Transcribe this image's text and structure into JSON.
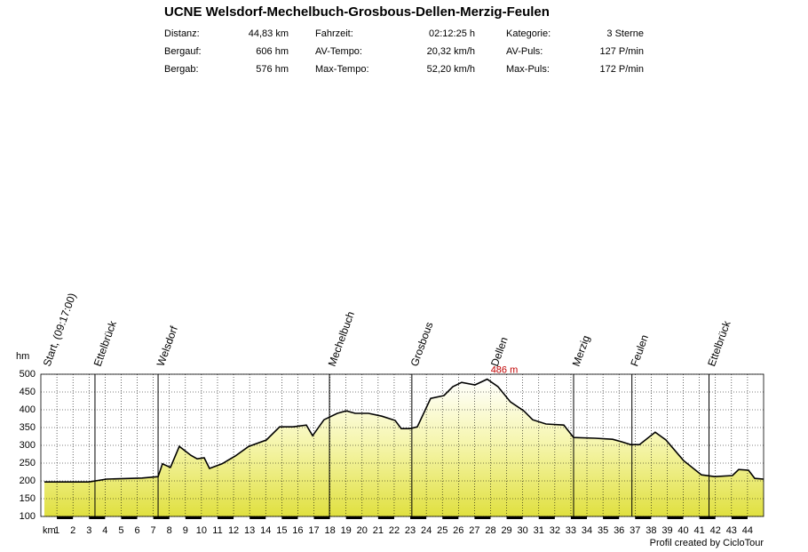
{
  "chart_data": {
    "type": "area",
    "title": "UCNE Welsdorf-Mechelbuch-Grosbous-Dellen-Merzig-Feulen",
    "stats": [
      {
        "label": "Distanz:",
        "value": "44,83 km"
      },
      {
        "label": "Bergauf:",
        "value": "606 hm"
      },
      {
        "label": "Bergab:",
        "value": "576 hm"
      },
      {
        "label": "Fahrzeit:",
        "value": "02:12:25 h"
      },
      {
        "label": "AV-Tempo:",
        "value": "20,32 km/h"
      },
      {
        "label": "Max-Tempo:",
        "value": "52,20 km/h"
      },
      {
        "label": "Kategorie:",
        "value": "3 Sterne"
      },
      {
        "label": "AV-Puls:",
        "value": "127 P/min"
      },
      {
        "label": "Max-Puls:",
        "value": "172 P/min"
      }
    ],
    "x_label": "km",
    "y_label": "hm",
    "x": [
      0.22,
      2.99,
      4.09,
      6.3,
      7.3,
      7.57,
      8.07,
      8.62,
      9.34,
      9.73,
      10.17,
      10.5,
      11.28,
      12.11,
      12.94,
      14.04,
      14.87,
      15.7,
      16.53,
      16.92,
      17.63,
      18.46,
      19.02,
      19.57,
      20.4,
      21.23,
      22.06,
      22.44,
      23.0,
      23.44,
      24.27,
      25.1,
      25.65,
      26.2,
      27.03,
      27.79,
      28.46,
      29.24,
      30.07,
      30.62,
      31.45,
      32.56,
      33.17,
      34.5,
      35.6,
      36.16,
      36.72,
      37.27,
      38.25,
      38.92,
      40.02,
      41.13,
      41.96,
      43.06,
      43.45,
      44.06,
      44.45,
      45.0
    ],
    "values": [
      197,
      197,
      205,
      208,
      212,
      248,
      238,
      297,
      272,
      262,
      265,
      235,
      248,
      270,
      297,
      315,
      352,
      352,
      357,
      327,
      372,
      390,
      397,
      390,
      390,
      382,
      370,
      347,
      347,
      352,
      432,
      440,
      465,
      477,
      470,
      486,
      465,
      422,
      397,
      372,
      360,
      357,
      322,
      320,
      317,
      310,
      302,
      302,
      337,
      315,
      257,
      217,
      212,
      215,
      232,
      230,
      207,
      205
    ],
    "color": "#e6e64a",
    "xlim": [
      0,
      45
    ],
    "ylim": [
      100,
      500
    ],
    "xticks": [
      1,
      2,
      3,
      4,
      5,
      6,
      7,
      8,
      9,
      10,
      11,
      12,
      13,
      14,
      15,
      16,
      17,
      18,
      19,
      20,
      21,
      22,
      23,
      24,
      25,
      26,
      27,
      28,
      29,
      30,
      31,
      32,
      33,
      34,
      35,
      36,
      37,
      38,
      39,
      40,
      41,
      42,
      43,
      44
    ],
    "yticks": [
      100,
      150,
      200,
      250,
      300,
      350,
      400,
      450,
      500
    ],
    "grid": true,
    "waypoints": [
      {
        "name": "Start, (09:17:00)",
        "x": 0.22
      },
      {
        "name": "Ettelbrück",
        "x": 3.37
      },
      {
        "name": "Welsdorf",
        "x": 7.3
      },
      {
        "name": "Mechelbuch",
        "x": 17.97
      },
      {
        "name": "Grosbous",
        "x": 23.1
      },
      {
        "name": "Dellen",
        "x": 28.1
      },
      {
        "name": "Merzig",
        "x": 33.17
      },
      {
        "name": "Feulen",
        "x": 36.8
      },
      {
        "name": "Ettelbrück",
        "x": 41.6
      }
    ],
    "annotation": {
      "text": "486 m",
      "x": 27.79,
      "y": 486
    },
    "footer": "Profil created by CicloTour"
  }
}
